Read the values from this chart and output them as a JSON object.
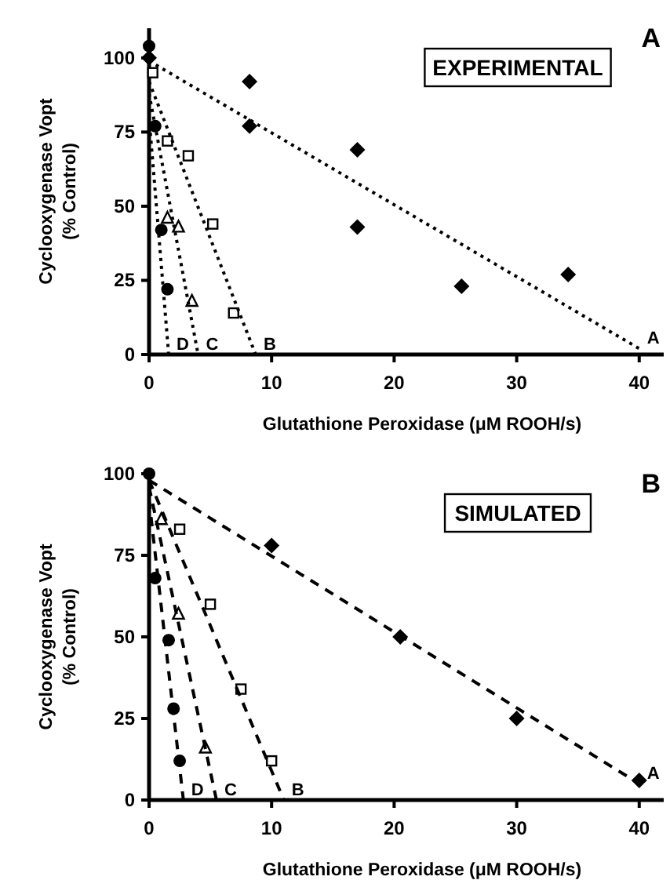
{
  "chart_data": [
    {
      "type": "scatter",
      "xlabel": "Glutathione Peroxidase (μM ROOH/s)",
      "ylabel": "Cyclooxygenase Vopt\n(% Control)",
      "xlim": [
        0,
        42
      ],
      "ylim": [
        0,
        110
      ],
      "xticks": [
        0,
        10,
        20,
        30,
        40
      ],
      "yticks": [
        0,
        25,
        50,
        75,
        100
      ],
      "grid": false,
      "annotations": [
        "A",
        "EXPERIMENTAL"
      ],
      "series": [
        {
          "marker": "diamond",
          "color": "#000000",
          "x": [
            0,
            8.2,
            8.2,
            17,
            17,
            25.5,
            34.2
          ],
          "values": [
            100,
            92,
            77,
            69,
            43,
            23,
            27
          ]
        },
        {
          "type": "scatter",
          "marker": "square",
          "color": "#000000",
          "x": [
            0.3,
            1.5,
            3.2,
            5.2,
            6.9
          ],
          "values": [
            95,
            72,
            67,
            44,
            14
          ]
        },
        {
          "marker": "triangle",
          "color": "#000000",
          "x": [
            1.5,
            2.4,
            3.5
          ],
          "values": [
            46,
            43,
            18
          ]
        },
        {
          "type": "scatter",
          "marker": "circle",
          "color": "#000000",
          "x": [
            0,
            0.5,
            1,
            1.5
          ],
          "values": [
            104,
            77,
            42,
            22
          ]
        },
        {
          "type": "line",
          "name": "A",
          "line_style": "dotted",
          "color": "#000000",
          "x": [
            0,
            40
          ],
          "values": [
            99,
            2
          ]
        },
        {
          "type": "line",
          "name": "B",
          "line_style": "dotted",
          "color": "#000000",
          "x": [
            0,
            8.7
          ],
          "values": [
            92,
            0
          ]
        },
        {
          "type": "line",
          "name": "C",
          "line_style": "dotted",
          "color": "#000000",
          "x": [
            0,
            4
          ],
          "values": [
            88,
            0
          ]
        },
        {
          "type": "line",
          "name": "D",
          "line_style": "dotted",
          "color": "#000000",
          "x": [
            0,
            1.6
          ],
          "values": [
            80,
            0
          ]
        }
      ]
    },
    {
      "type": "scatter",
      "xlabel": "Glutathione Peroxidase (μM ROOH/s)",
      "ylabel": "Cyclooxygenase Vopt\n(% Control)",
      "xlim": [
        0,
        42
      ],
      "ylim": [
        0,
        100
      ],
      "xticks": [
        0,
        10,
        20,
        30,
        40
      ],
      "yticks": [
        0,
        25,
        50,
        75,
        100
      ],
      "grid": false,
      "annotations": [
        "B",
        "SIMULATED"
      ],
      "series": [
        {
          "marker": "diamond",
          "color": "#000000",
          "x": [
            10,
            20.5,
            30,
            40
          ],
          "values": [
            78,
            50,
            25,
            6
          ]
        },
        {
          "type": "scatter",
          "marker": "square",
          "color": "#000000",
          "x": [
            2.5,
            5,
            7.5,
            10
          ],
          "values": [
            83,
            60,
            34,
            12
          ]
        },
        {
          "type": "scatter",
          "marker": "triangle",
          "color": "#000000",
          "x": [
            1,
            2.4,
            4.6
          ],
          "values": [
            86,
            57,
            16
          ]
        },
        {
          "type": "scatter",
          "marker": "circle",
          "color": "#000000",
          "x": [
            0,
            0.5,
            1.6,
            2,
            2.5
          ],
          "values": [
            100,
            68,
            49,
            28,
            12
          ]
        },
        {
          "type": "line",
          "name": "A",
          "line_style": "dashed",
          "color": "#000000",
          "x": [
            0,
            40
          ],
          "values": [
            98,
            5
          ]
        },
        {
          "type": "line",
          "name": "B",
          "line_style": "dashed",
          "color": "#000000",
          "x": [
            0,
            11
          ],
          "values": [
            98,
            0
          ]
        },
        {
          "type": "line",
          "name": "C",
          "line_style": "dashed",
          "color": "#000000",
          "x": [
            0,
            5.5
          ],
          "values": [
            96,
            0
          ]
        },
        {
          "type": "line",
          "name": "D",
          "line_style": "dashed",
          "color": "#000000",
          "x": [
            0,
            2.8
          ],
          "values": [
            92,
            0
          ]
        }
      ]
    }
  ]
}
